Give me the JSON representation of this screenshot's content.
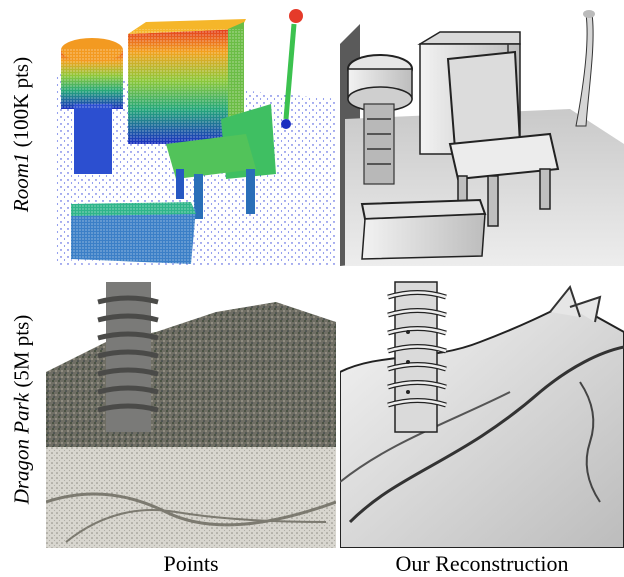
{
  "figure": {
    "rows": [
      {
        "name_italic": "Room1",
        "count": "(100K pts)"
      },
      {
        "name_italic": "Dragon Park",
        "count": "(5M pts)"
      }
    ],
    "columns": [
      "Points",
      "Our Reconstruction"
    ]
  }
}
